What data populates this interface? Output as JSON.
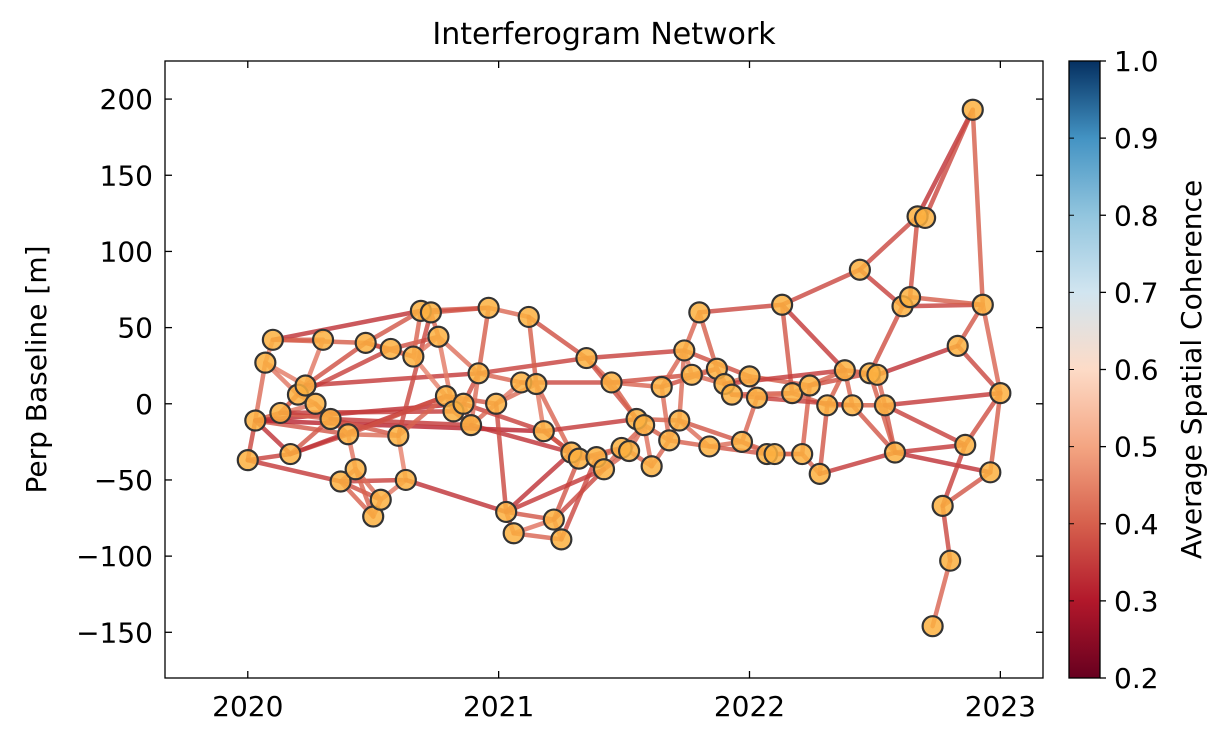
{
  "chart_data": {
    "type": "scatter",
    "title": "Interferogram Network",
    "xlabel": "",
    "ylabel": "Perp Baseline [m]",
    "xlim": [
      2019.67,
      2023.17
    ],
    "ylim": [
      -180,
      225
    ],
    "x_ticks": [
      2020,
      2021,
      2022,
      2023
    ],
    "y_ticks": [
      200,
      150,
      100,
      50,
      0,
      -50,
      -100,
      -150
    ],
    "y_tick_labels": [
      "200",
      "150",
      "100",
      "50",
      "0",
      "−50",
      "−100",
      "−150"
    ],
    "grid": false,
    "colorbar": {
      "label": "Average Spatial Coherence",
      "range": [
        0.2,
        1.0
      ],
      "ticks": [
        "0.2",
        "0.3",
        "0.4",
        "0.5",
        "0.6",
        "0.7",
        "0.8",
        "0.9",
        "1.0"
      ],
      "colormap": "RdBu",
      "clip_below": 0.7
    },
    "node_color": "#fbb040",
    "node_edge_color": "#333333",
    "nodes": [
      [
        2020.0,
        -37
      ],
      [
        2020.03,
        -11
      ],
      [
        2020.07,
        27
      ],
      [
        2020.1,
        42
      ],
      [
        2020.13,
        -6
      ],
      [
        2020.17,
        -33
      ],
      [
        2020.2,
        6
      ],
      [
        2020.23,
        12
      ],
      [
        2020.27,
        0
      ],
      [
        2020.3,
        42
      ],
      [
        2020.33,
        -10
      ],
      [
        2020.37,
        -51
      ],
      [
        2020.4,
        -20
      ],
      [
        2020.43,
        -43
      ],
      [
        2020.47,
        40
      ],
      [
        2020.5,
        -74
      ],
      [
        2020.53,
        -63
      ],
      [
        2020.57,
        36
      ],
      [
        2020.6,
        -21
      ],
      [
        2020.63,
        -50
      ],
      [
        2020.66,
        31
      ],
      [
        2020.69,
        61
      ],
      [
        2020.73,
        60
      ],
      [
        2020.76,
        44
      ],
      [
        2020.79,
        5
      ],
      [
        2020.82,
        -5
      ],
      [
        2020.86,
        0
      ],
      [
        2020.89,
        -14
      ],
      [
        2020.92,
        20
      ],
      [
        2020.96,
        63
      ],
      [
        2020.99,
        0
      ],
      [
        2021.03,
        -71
      ],
      [
        2021.06,
        -85
      ],
      [
        2021.09,
        14
      ],
      [
        2021.12,
        57
      ],
      [
        2021.15,
        13
      ],
      [
        2021.18,
        -18
      ],
      [
        2021.22,
        -76
      ],
      [
        2021.25,
        -89
      ],
      [
        2021.29,
        -32
      ],
      [
        2021.32,
        -36
      ],
      [
        2021.35,
        30
      ],
      [
        2021.39,
        -35
      ],
      [
        2021.42,
        -43
      ],
      [
        2021.45,
        14
      ],
      [
        2021.49,
        -29
      ],
      [
        2021.52,
        -31
      ],
      [
        2021.55,
        -10
      ],
      [
        2021.58,
        -14
      ],
      [
        2021.61,
        -41
      ],
      [
        2021.65,
        11
      ],
      [
        2021.68,
        -24
      ],
      [
        2021.72,
        -11
      ],
      [
        2021.74,
        35
      ],
      [
        2021.77,
        19
      ],
      [
        2021.8,
        60
      ],
      [
        2021.84,
        -28
      ],
      [
        2021.87,
        23
      ],
      [
        2021.9,
        13
      ],
      [
        2021.93,
        6
      ],
      [
        2021.97,
        -25
      ],
      [
        2022.0,
        18
      ],
      [
        2022.03,
        4
      ],
      [
        2022.07,
        -33
      ],
      [
        2022.1,
        -33
      ],
      [
        2022.13,
        65
      ],
      [
        2022.17,
        7
      ],
      [
        2022.21,
        -33
      ],
      [
        2022.24,
        12
      ],
      [
        2022.28,
        -46
      ],
      [
        2022.31,
        -1
      ],
      [
        2022.38,
        22
      ],
      [
        2022.41,
        -1
      ],
      [
        2022.44,
        88
      ],
      [
        2022.48,
        20
      ],
      [
        2022.51,
        19
      ],
      [
        2022.54,
        -1
      ],
      [
        2022.58,
        -32
      ],
      [
        2022.61,
        64
      ],
      [
        2022.64,
        70
      ],
      [
        2022.67,
        123
      ],
      [
        2022.7,
        122
      ],
      [
        2022.73,
        -146
      ],
      [
        2022.77,
        -67
      ],
      [
        2022.8,
        -103
      ],
      [
        2022.83,
        38
      ],
      [
        2022.86,
        -27
      ],
      [
        2022.89,
        193
      ],
      [
        2022.93,
        65
      ],
      [
        2022.96,
        -45
      ],
      [
        2023.0,
        7
      ]
    ],
    "edges": [
      [
        0,
        1,
        0.45
      ],
      [
        0,
        5,
        0.44
      ],
      [
        0,
        11,
        0.43
      ],
      [
        1,
        2,
        0.52
      ],
      [
        1,
        4,
        0.46
      ],
      [
        1,
        5,
        0.42
      ],
      [
        1,
        8,
        0.55
      ],
      [
        1,
        12,
        0.47
      ],
      [
        1,
        26,
        0.41
      ],
      [
        1,
        36,
        0.4
      ],
      [
        2,
        3,
        0.58
      ],
      [
        2,
        6,
        0.55
      ],
      [
        2,
        7,
        0.56
      ],
      [
        3,
        9,
        0.5
      ],
      [
        3,
        21,
        0.42
      ],
      [
        3,
        14,
        0.48
      ],
      [
        4,
        6,
        0.5
      ],
      [
        4,
        7,
        0.52
      ],
      [
        4,
        10,
        0.49
      ],
      [
        4,
        25,
        0.43
      ],
      [
        5,
        10,
        0.47
      ],
      [
        5,
        12,
        0.45
      ],
      [
        5,
        24,
        0.42
      ],
      [
        6,
        7,
        0.48
      ],
      [
        6,
        8,
        0.52
      ],
      [
        6,
        17,
        0.44
      ],
      [
        7,
        9,
        0.55
      ],
      [
        7,
        14,
        0.46
      ],
      [
        7,
        28,
        0.43
      ],
      [
        8,
        10,
        0.56
      ],
      [
        8,
        12,
        0.48
      ],
      [
        10,
        12,
        0.51
      ],
      [
        10,
        18,
        0.47
      ],
      [
        10,
        27,
        0.43
      ],
      [
        11,
        13,
        0.5
      ],
      [
        11,
        15,
        0.49
      ],
      [
        11,
        16,
        0.46
      ],
      [
        11,
        19,
        0.44
      ],
      [
        12,
        13,
        0.54
      ],
      [
        12,
        18,
        0.52
      ],
      [
        12,
        24,
        0.46
      ],
      [
        13,
        15,
        0.49
      ],
      [
        13,
        16,
        0.52
      ],
      [
        14,
        17,
        0.53
      ],
      [
        14,
        21,
        0.47
      ],
      [
        14,
        20,
        0.45
      ],
      [
        15,
        16,
        0.5
      ],
      [
        16,
        19,
        0.55
      ],
      [
        17,
        20,
        0.55
      ],
      [
        17,
        23,
        0.46
      ],
      [
        18,
        19,
        0.58
      ],
      [
        18,
        24,
        0.49
      ],
      [
        18,
        22,
        0.45
      ],
      [
        19,
        31,
        0.42
      ],
      [
        20,
        21,
        0.5
      ],
      [
        20,
        23,
        0.54
      ],
      [
        20,
        24,
        0.58
      ],
      [
        21,
        22,
        0.52
      ],
      [
        21,
        29,
        0.47
      ],
      [
        22,
        23,
        0.5
      ],
      [
        22,
        29,
        0.46
      ],
      [
        23,
        25,
        0.56
      ],
      [
        23,
        28,
        0.53
      ],
      [
        24,
        25,
        0.55
      ],
      [
        24,
        26,
        0.52
      ],
      [
        24,
        30,
        0.47
      ],
      [
        25,
        26,
        0.54
      ],
      [
        25,
        27,
        0.48
      ],
      [
        26,
        27,
        0.5
      ],
      [
        26,
        28,
        0.46
      ],
      [
        26,
        36,
        0.44
      ],
      [
        27,
        28,
        0.52
      ],
      [
        27,
        30,
        0.5
      ],
      [
        27,
        39,
        0.42
      ],
      [
        28,
        29,
        0.48
      ],
      [
        28,
        33,
        0.5
      ],
      [
        28,
        41,
        0.44
      ],
      [
        29,
        34,
        0.51
      ],
      [
        30,
        33,
        0.55
      ],
      [
        30,
        35,
        0.52
      ],
      [
        30,
        31,
        0.45
      ],
      [
        31,
        32,
        0.5
      ],
      [
        31,
        37,
        0.47
      ],
      [
        31,
        39,
        0.42
      ],
      [
        32,
        37,
        0.54
      ],
      [
        32,
        38,
        0.5
      ],
      [
        33,
        35,
        0.54
      ],
      [
        33,
        44,
        0.45
      ],
      [
        34,
        35,
        0.48
      ],
      [
        34,
        41,
        0.46
      ],
      [
        35,
        36,
        0.56
      ],
      [
        35,
        39,
        0.5
      ],
      [
        36,
        39,
        0.47
      ],
      [
        36,
        40,
        0.46
      ],
      [
        36,
        47,
        0.43
      ],
      [
        37,
        38,
        0.55
      ],
      [
        37,
        40,
        0.47
      ],
      [
        37,
        43,
        0.45
      ],
      [
        38,
        42,
        0.45
      ],
      [
        39,
        40,
        0.52
      ],
      [
        39,
        42,
        0.5
      ],
      [
        40,
        42,
        0.55
      ],
      [
        40,
        45,
        0.47
      ],
      [
        41,
        44,
        0.5
      ],
      [
        41,
        53,
        0.44
      ],
      [
        41,
        47,
        0.46
      ],
      [
        42,
        43,
        0.54
      ],
      [
        42,
        45,
        0.5
      ],
      [
        43,
        45,
        0.52
      ],
      [
        43,
        46,
        0.5
      ],
      [
        44,
        47,
        0.48
      ],
      [
        44,
        50,
        0.5
      ],
      [
        44,
        54,
        0.46
      ],
      [
        45,
        46,
        0.52
      ],
      [
        45,
        48,
        0.49
      ],
      [
        46,
        49,
        0.5
      ],
      [
        46,
        48,
        0.52
      ],
      [
        47,
        48,
        0.56
      ],
      [
        47,
        52,
        0.48
      ],
      [
        48,
        49,
        0.53
      ],
      [
        48,
        51,
        0.48
      ],
      [
        49,
        51,
        0.5
      ],
      [
        50,
        51,
        0.52
      ],
      [
        50,
        53,
        0.5
      ],
      [
        50,
        57,
        0.46
      ],
      [
        51,
        52,
        0.54
      ],
      [
        51,
        56,
        0.49
      ],
      [
        52,
        53,
        0.52
      ],
      [
        52,
        56,
        0.52
      ],
      [
        52,
        60,
        0.47
      ],
      [
        53,
        54,
        0.56
      ],
      [
        53,
        55,
        0.5
      ],
      [
        53,
        61,
        0.46
      ],
      [
        54,
        57,
        0.52
      ],
      [
        54,
        58,
        0.5
      ],
      [
        55,
        65,
        0.45
      ],
      [
        55,
        57,
        0.48
      ],
      [
        56,
        60,
        0.52
      ],
      [
        56,
        63,
        0.47
      ],
      [
        57,
        58,
        0.55
      ],
      [
        57,
        59,
        0.53
      ],
      [
        58,
        59,
        0.55
      ],
      [
        58,
        61,
        0.52
      ],
      [
        59,
        62,
        0.51
      ],
      [
        59,
        66,
        0.47
      ],
      [
        60,
        62,
        0.5
      ],
      [
        60,
        63,
        0.52
      ],
      [
        60,
        64,
        0.5
      ],
      [
        61,
        62,
        0.56
      ],
      [
        61,
        68,
        0.48
      ],
      [
        62,
        66,
        0.53
      ],
      [
        63,
        64,
        0.57
      ],
      [
        63,
        67,
        0.46
      ],
      [
        64,
        67,
        0.5
      ],
      [
        65,
        73,
        0.45
      ],
      [
        65,
        71,
        0.43
      ],
      [
        65,
        66,
        0.47
      ],
      [
        66,
        68,
        0.55
      ],
      [
        66,
        70,
        0.48
      ],
      [
        67,
        69,
        0.5
      ],
      [
        67,
        68,
        0.49
      ],
      [
        68,
        71,
        0.48
      ],
      [
        68,
        74,
        0.46
      ],
      [
        69,
        70,
        0.47
      ],
      [
        69,
        77,
        0.43
      ],
      [
        70,
        72,
        0.52
      ],
      [
        70,
        71,
        0.48
      ],
      [
        71,
        72,
        0.5
      ],
      [
        71,
        74,
        0.52
      ],
      [
        71,
        75,
        0.5
      ],
      [
        72,
        76,
        0.48
      ],
      [
        72,
        77,
        0.47
      ],
      [
        73,
        80,
        0.45
      ],
      [
        73,
        78,
        0.44
      ],
      [
        74,
        75,
        0.55
      ],
      [
        74,
        78,
        0.46
      ],
      [
        74,
        77,
        0.48
      ],
      [
        75,
        76,
        0.5
      ],
      [
        76,
        86,
        0.44
      ],
      [
        76,
        77,
        0.47
      ],
      [
        77,
        86,
        0.43
      ],
      [
        77,
        89,
        0.42
      ],
      [
        78,
        79,
        0.52
      ],
      [
        78,
        88,
        0.44
      ],
      [
        79,
        88,
        0.48
      ],
      [
        79,
        80,
        0.46
      ],
      [
        80,
        81,
        0.5
      ],
      [
        80,
        87,
        0.42
      ],
      [
        81,
        87,
        0.45
      ],
      [
        82,
        84,
        0.5
      ],
      [
        83,
        84,
        0.45
      ],
      [
        83,
        89,
        0.47
      ],
      [
        83,
        86,
        0.44
      ],
      [
        85,
        88,
        0.47
      ],
      [
        85,
        90,
        0.45
      ],
      [
        85,
        75,
        0.42
      ],
      [
        86,
        90,
        0.46
      ],
      [
        87,
        88,
        0.48
      ],
      [
        88,
        90,
        0.5
      ],
      [
        89,
        90,
        0.48
      ],
      [
        76,
        90,
        0.43
      ],
      [
        43,
        31,
        0.43
      ],
      [
        62,
        72,
        0.44
      ],
      [
        58,
        71,
        0.43
      ]
    ]
  }
}
